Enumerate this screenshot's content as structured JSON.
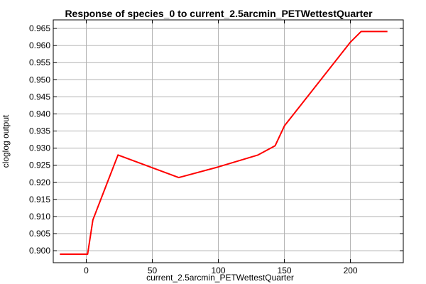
{
  "chart_data": {
    "type": "line",
    "title": "Response of species_0 to current_2.5arcmin_PETWettestQuarter",
    "xlabel": "current_2.5arcmin_PETWettestQuarter",
    "ylabel": "cloglog output",
    "xlim": [
      -25,
      240
    ],
    "ylim": [
      0.8965,
      0.9675
    ],
    "x_ticks": [
      0,
      50,
      100,
      150,
      200
    ],
    "x_tick_labels": [
      "0",
      "50",
      "100",
      "150",
      "200"
    ],
    "y_ticks": [
      0.9,
      0.905,
      0.91,
      0.915,
      0.92,
      0.925,
      0.93,
      0.935,
      0.94,
      0.945,
      0.95,
      0.955,
      0.96,
      0.965
    ],
    "y_tick_labels": [
      "0.900",
      "0.905",
      "0.910",
      "0.915",
      "0.920",
      "0.925",
      "0.930",
      "0.935",
      "0.940",
      "0.945",
      "0.950",
      "0.955",
      "0.960",
      "0.965"
    ],
    "grid": true,
    "series": [
      {
        "color": "#ff0000",
        "x": [
          -20,
          1,
          5,
          15,
          24,
          70,
          100,
          130,
          143,
          150,
          200,
          208,
          228
        ],
        "y": [
          0.899,
          0.899,
          0.909,
          0.919,
          0.928,
          0.9214,
          0.9245,
          0.928,
          0.9307,
          0.9365,
          0.961,
          0.9641,
          0.9641
        ]
      }
    ]
  }
}
